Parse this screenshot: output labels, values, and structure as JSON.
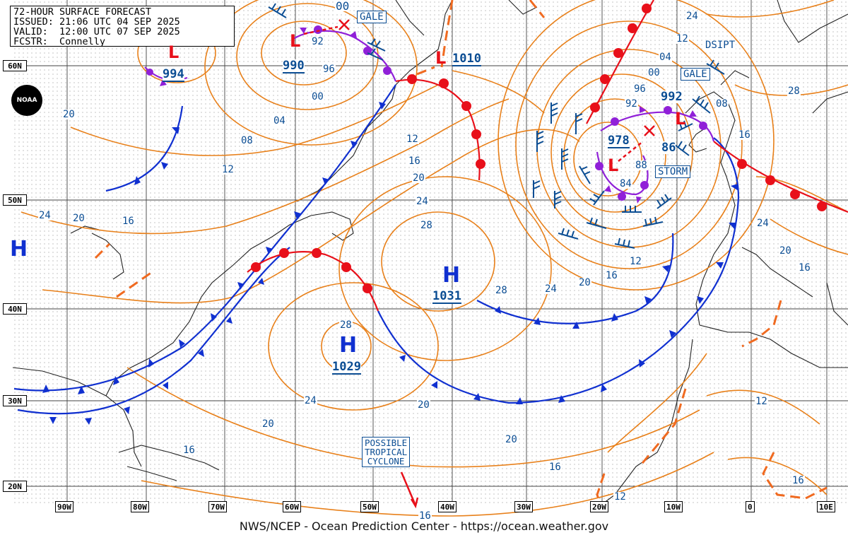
{
  "header": {
    "line1": "72-HOUR SURFACE FORECAST",
    "line2": "ISSUED: 21:06 UTC 04 SEP 2025",
    "line3": "VALID:  12:00 UTC 07 SEP 2025",
    "line4": "FCSTR:  Connelly"
  },
  "footer": "NWS/NCEP - Ocean Prediction Center - https://ocean.weather.gov",
  "logo": "NOAA",
  "lat_labels": [
    "60N",
    "50N",
    "40N",
    "30N",
    "20N"
  ],
  "lon_labels": [
    "90W",
    "80W",
    "70W",
    "60W",
    "50W",
    "40W",
    "30W",
    "20W",
    "10W",
    "0",
    "10E"
  ],
  "highs": [
    {
      "label": "H",
      "pressure": "1031"
    },
    {
      "label": "H",
      "pressure": "1029"
    },
    {
      "label": "H"
    }
  ],
  "lows": [
    {
      "label": "L",
      "pressure": "994"
    },
    {
      "label": "L",
      "pressure": "990"
    },
    {
      "label": "L",
      "pressure": "1010"
    },
    {
      "label": "L",
      "pressure": "992"
    },
    {
      "label": "L",
      "pressure": "978"
    },
    {
      "label": "L"
    }
  ],
  "warnings": [
    "GALE",
    "GALE",
    "STORM",
    "DSIPT"
  ],
  "callout": [
    "POSSIBLE",
    "TROPICAL",
    "CYCLONE"
  ],
  "isobar_labels": [
    "00",
    "92",
    "96",
    "00",
    "04",
    "08",
    "12",
    "16",
    "20",
    "24",
    "28",
    "28",
    "24",
    "20",
    "16",
    "12",
    "08",
    "04",
    "00",
    "96",
    "92",
    "84",
    "88",
    "86",
    "12",
    "16",
    "20",
    "24",
    "28",
    "24",
    "20",
    "16",
    "20",
    "16",
    "12",
    "16",
    "20",
    "24",
    "28",
    "24",
    "20",
    "16",
    "12",
    "16",
    "20",
    "12",
    "16"
  ],
  "colors": {
    "isobar": "#e8801a",
    "cold_front": "#1030d0",
    "warm_front": "#e8101a",
    "occluded_front": "#9020d8",
    "trough": "#f06a20",
    "wind_barb": "#0b4d93",
    "land": "#000000"
  }
}
